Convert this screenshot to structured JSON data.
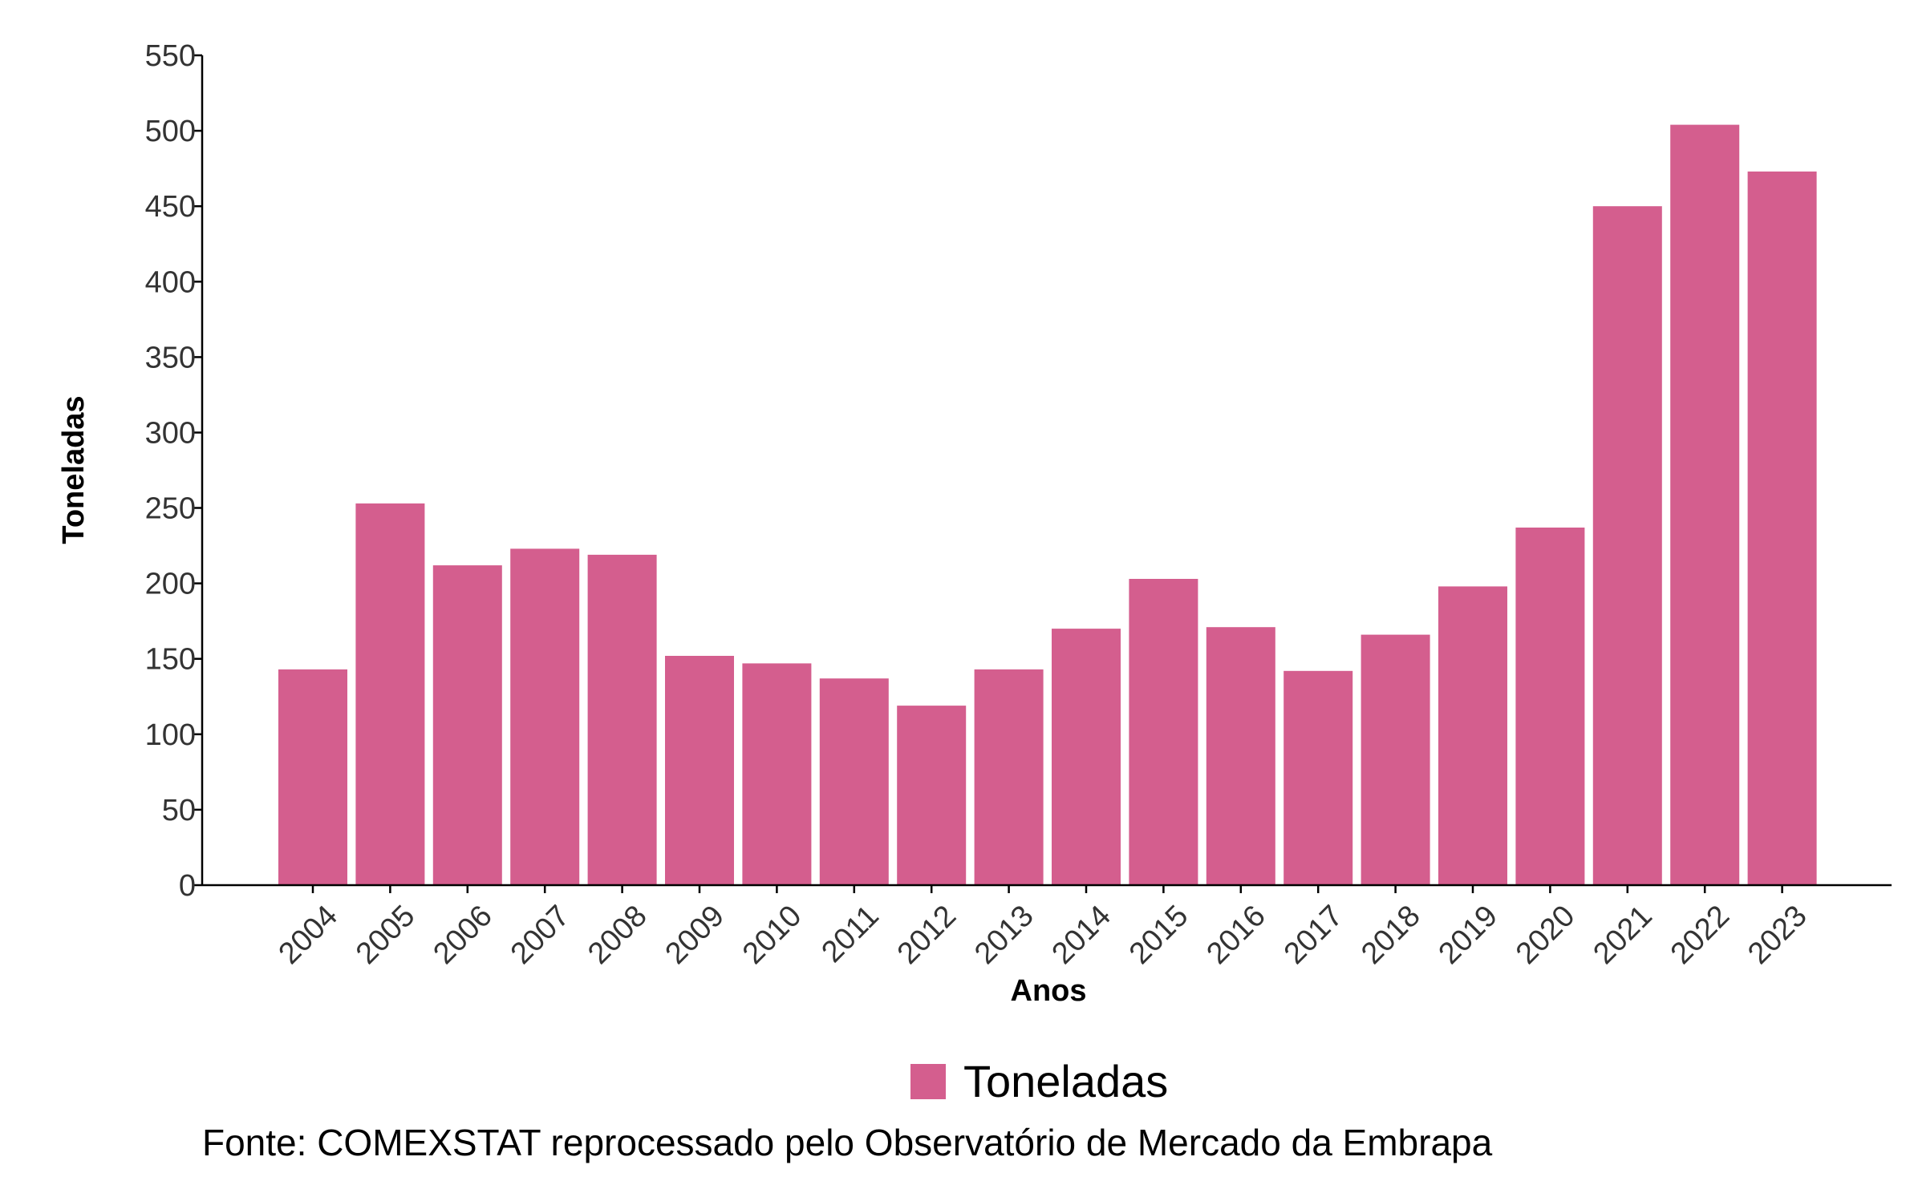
{
  "colors": {
    "bar": "#D45E8E",
    "axis": "#000000",
    "tick_text": "#333333"
  },
  "chart_data": {
    "type": "bar",
    "categories": [
      "2004",
      "2005",
      "2006",
      "2007",
      "2008",
      "2009",
      "2010",
      "2011",
      "2012",
      "2013",
      "2014",
      "2015",
      "2016",
      "2017",
      "2018",
      "2019",
      "2020",
      "2021",
      "2022",
      "2023"
    ],
    "series": [
      {
        "name": "Toneladas",
        "values": [
          143,
          253,
          212,
          223,
          219,
          152,
          147,
          137,
          119,
          143,
          170,
          203,
          171,
          142,
          166,
          198,
          237,
          450,
          504,
          473
        ]
      }
    ],
    "xlabel": "Anos",
    "ylabel": "Toneladas",
    "ylim": [
      0,
      550
    ],
    "yticks": [
      "0",
      "50",
      "100",
      "150",
      "200",
      "250",
      "300",
      "350",
      "400",
      "450",
      "500",
      "550"
    ],
    "grid": false,
    "legend_position": "bottom",
    "legend": [
      "Toneladas"
    ]
  },
  "caption": "Fonte: COMEXSTAT reprocessado pelo Observatório de Mercado da Embrapa"
}
